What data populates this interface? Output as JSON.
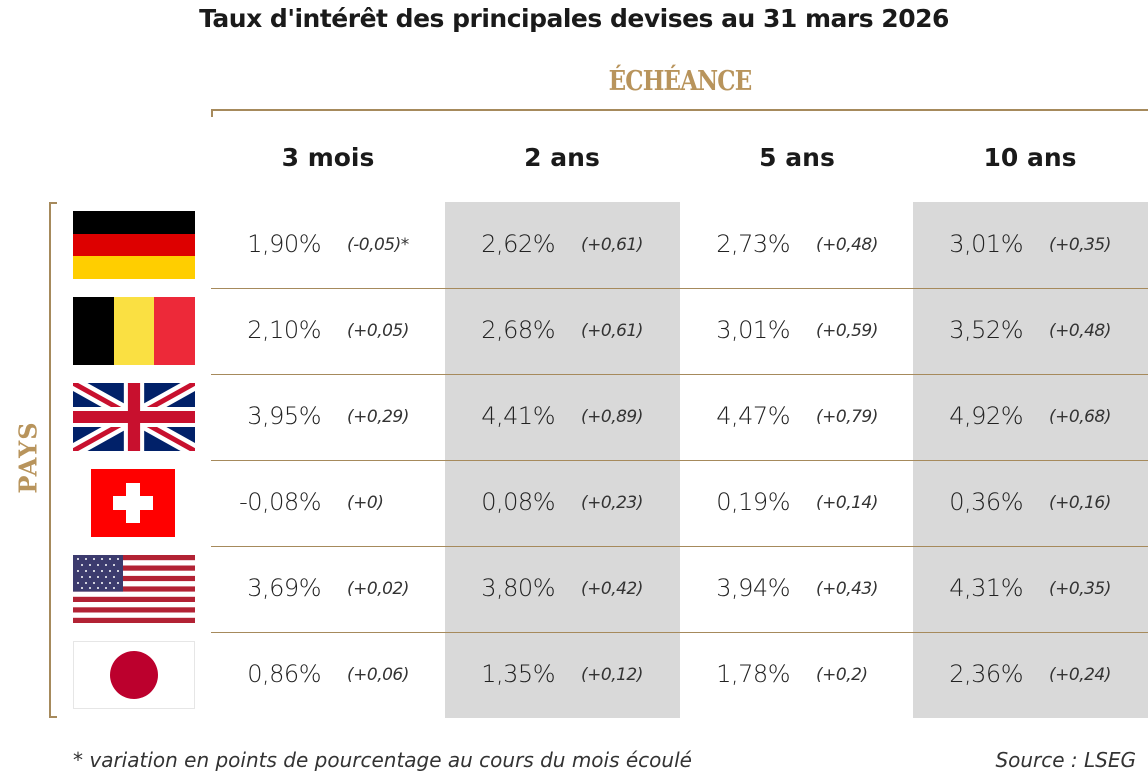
{
  "title": "Taux d'intérêt des principales devises au 31 mars 2026",
  "column_group_label": "ÉCHÉANCE",
  "row_group_label": "PAYS",
  "colors": {
    "accent": "#b8945c",
    "shade": "#d9d9d9"
  },
  "chart_data": {
    "type": "table",
    "title": "Taux d'intérêt des principales devises au 31 mars 2026",
    "columns": [
      "3 mois",
      "2 ans",
      "5 ans",
      "10 ans"
    ],
    "rows": [
      {
        "country_flag": "germany-flag",
        "rates": [
          "1,90%",
          "2,62%",
          "2,73%",
          "3,01%"
        ],
        "changes": [
          "(-0,05)*",
          "(+0,61)",
          "(+0,48)",
          "(+0,35)"
        ]
      },
      {
        "country_flag": "belgium-flag",
        "rates": [
          "2,10%",
          "2,68%",
          "3,01%",
          "3,52%"
        ],
        "changes": [
          "(+0,05)",
          "(+0,61)",
          "(+0,59)",
          "(+0,48)"
        ]
      },
      {
        "country_flag": "united-kingdom-flag",
        "rates": [
          "3,95%",
          "4,41%",
          "4,47%",
          "4,92%"
        ],
        "changes": [
          "(+0,29)",
          "(+0,89)",
          "(+0,79)",
          "(+0,68)"
        ]
      },
      {
        "country_flag": "switzerland-flag",
        "rates": [
          "-0,08%",
          "0,08%",
          "0,19%",
          "0,36%"
        ],
        "changes": [
          "(+0)",
          "(+0,23)",
          "(+0,14)",
          "(+0,16)"
        ]
      },
      {
        "country_flag": "united-states-flag",
        "rates": [
          "3,69%",
          "3,80%",
          "3,94%",
          "4,31%"
        ],
        "changes": [
          "(+0,02)",
          "(+0,42)",
          "(+0,43)",
          "(+0,35)"
        ]
      },
      {
        "country_flag": "japan-flag",
        "rates": [
          "0,86%",
          "1,35%",
          "1,78%",
          "2,36%"
        ],
        "changes": [
          "(+0,06)",
          "(+0,12)",
          "(+0,2)",
          "(+0,24)"
        ]
      }
    ]
  },
  "footnote": "* variation en points de pourcentage au cours du mois écoulé",
  "source": "Source : LSEG"
}
